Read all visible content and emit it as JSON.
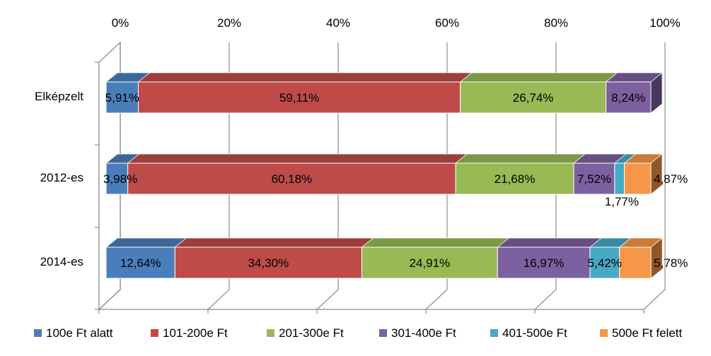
{
  "chart_data": {
    "type": "bar",
    "orientation": "horizontal",
    "stacked": "percent",
    "style": "3d",
    "categories": [
      "Elképzelt",
      "2012-es",
      "2014-es"
    ],
    "series": [
      {
        "name": "100e Ft alatt",
        "color": "#4a7ebb",
        "values": [
          5.91,
          3.98,
          12.64
        ],
        "labels": [
          "5,91%",
          "3,98%",
          "12,64%"
        ]
      },
      {
        "name": "101-200e Ft",
        "color": "#be4b48",
        "values": [
          59.11,
          60.18,
          34.3
        ],
        "labels": [
          "59,11%",
          "60,18%",
          "34,30%"
        ]
      },
      {
        "name": "201-300e Ft",
        "color": "#98b954",
        "values": [
          26.74,
          21.68,
          24.91
        ],
        "labels": [
          "26,74%",
          "21,68%",
          "24,91%"
        ]
      },
      {
        "name": "301-400e Ft",
        "color": "#7d60a0",
        "values": [
          8.24,
          7.52,
          16.97
        ],
        "labels": [
          "8,24%",
          "7,52%",
          "16,97%"
        ]
      },
      {
        "name": "401-500e Ft",
        "color": "#46aac5",
        "values": [
          0,
          1.77,
          5.42
        ],
        "labels": [
          "",
          "1,77%",
          "5,42%"
        ]
      },
      {
        "name": "500e Ft felett",
        "color": "#f79646",
        "values": [
          0,
          4.87,
          5.78
        ],
        "labels": [
          "",
          "4,87%",
          "5,78%"
        ]
      }
    ],
    "x_ticks": [
      "0%",
      "20%",
      "40%",
      "60%",
      "80%",
      "100%"
    ],
    "xlim": [
      0,
      100
    ],
    "axis_position": "top",
    "grid": true,
    "legend_position": "bottom"
  }
}
